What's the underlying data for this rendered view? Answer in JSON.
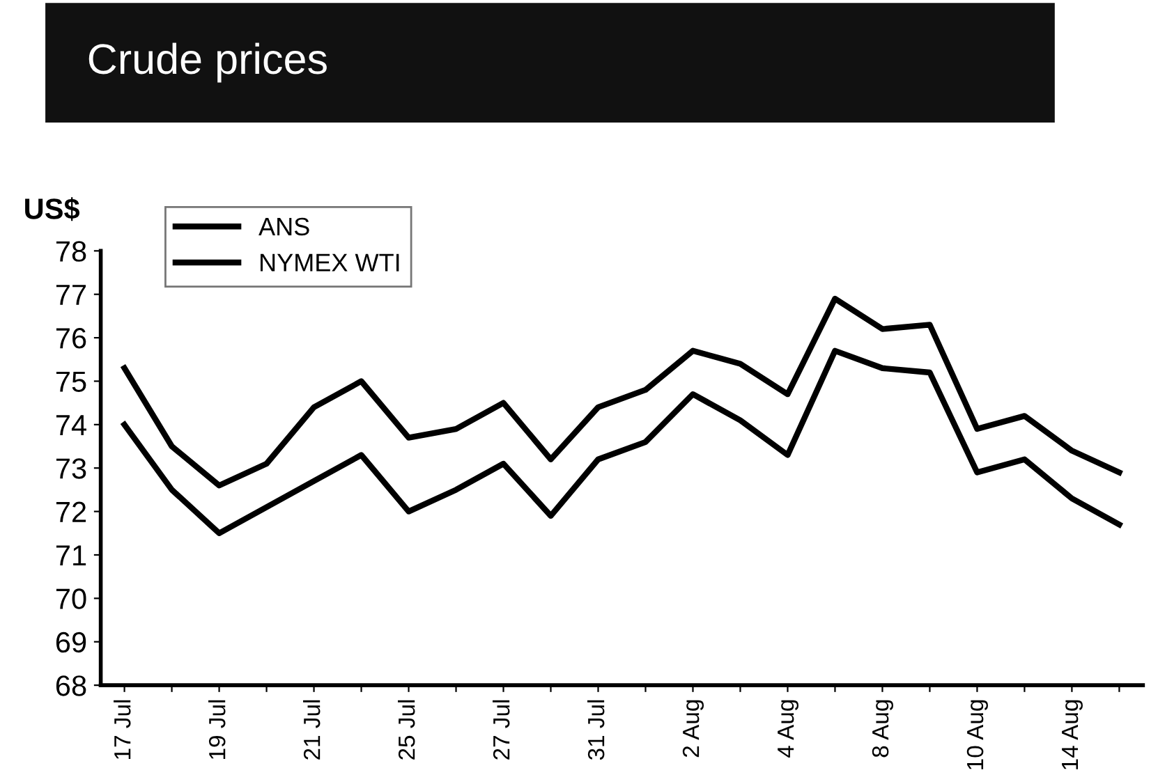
{
  "chart_data": {
    "type": "line",
    "title": "Crude prices",
    "ylabel": "US$",
    "categories": [
      "17 Jul",
      null,
      "19 Jul",
      null,
      "21 Jul",
      null,
      "25 Jul",
      null,
      "27 Jul",
      null,
      "31 Jul",
      null,
      "2 Aug",
      null,
      "4 Aug",
      null,
      "8 Aug",
      null,
      "10 Aug",
      null,
      "14 Aug",
      null
    ],
    "series": [
      {
        "name": "ANS",
        "color": "#000000",
        "values": [
          75.3,
          73.5,
          72.6,
          73.1,
          74.4,
          75.0,
          73.7,
          73.9,
          74.5,
          73.2,
          74.4,
          74.8,
          75.7,
          75.4,
          74.7,
          76.9,
          76.2,
          76.3,
          73.9,
          74.2,
          73.4,
          72.9
        ]
      },
      {
        "name": "NYMEX WTI",
        "color": "#000000",
        "values": [
          74.0,
          72.5,
          71.5,
          72.1,
          72.7,
          73.3,
          72.0,
          72.5,
          73.1,
          71.9,
          73.2,
          73.6,
          74.7,
          74.1,
          73.3,
          75.7,
          75.3,
          75.2,
          72.9,
          73.2,
          72.3,
          71.7
        ]
      }
    ],
    "ylim": [
      68,
      78
    ],
    "yticks": [
      68,
      69,
      70,
      71,
      72,
      73,
      74,
      75,
      76,
      77,
      78
    ],
    "grid": false,
    "legend": "top left",
    "marker": "none",
    "line_style": "solid"
  }
}
